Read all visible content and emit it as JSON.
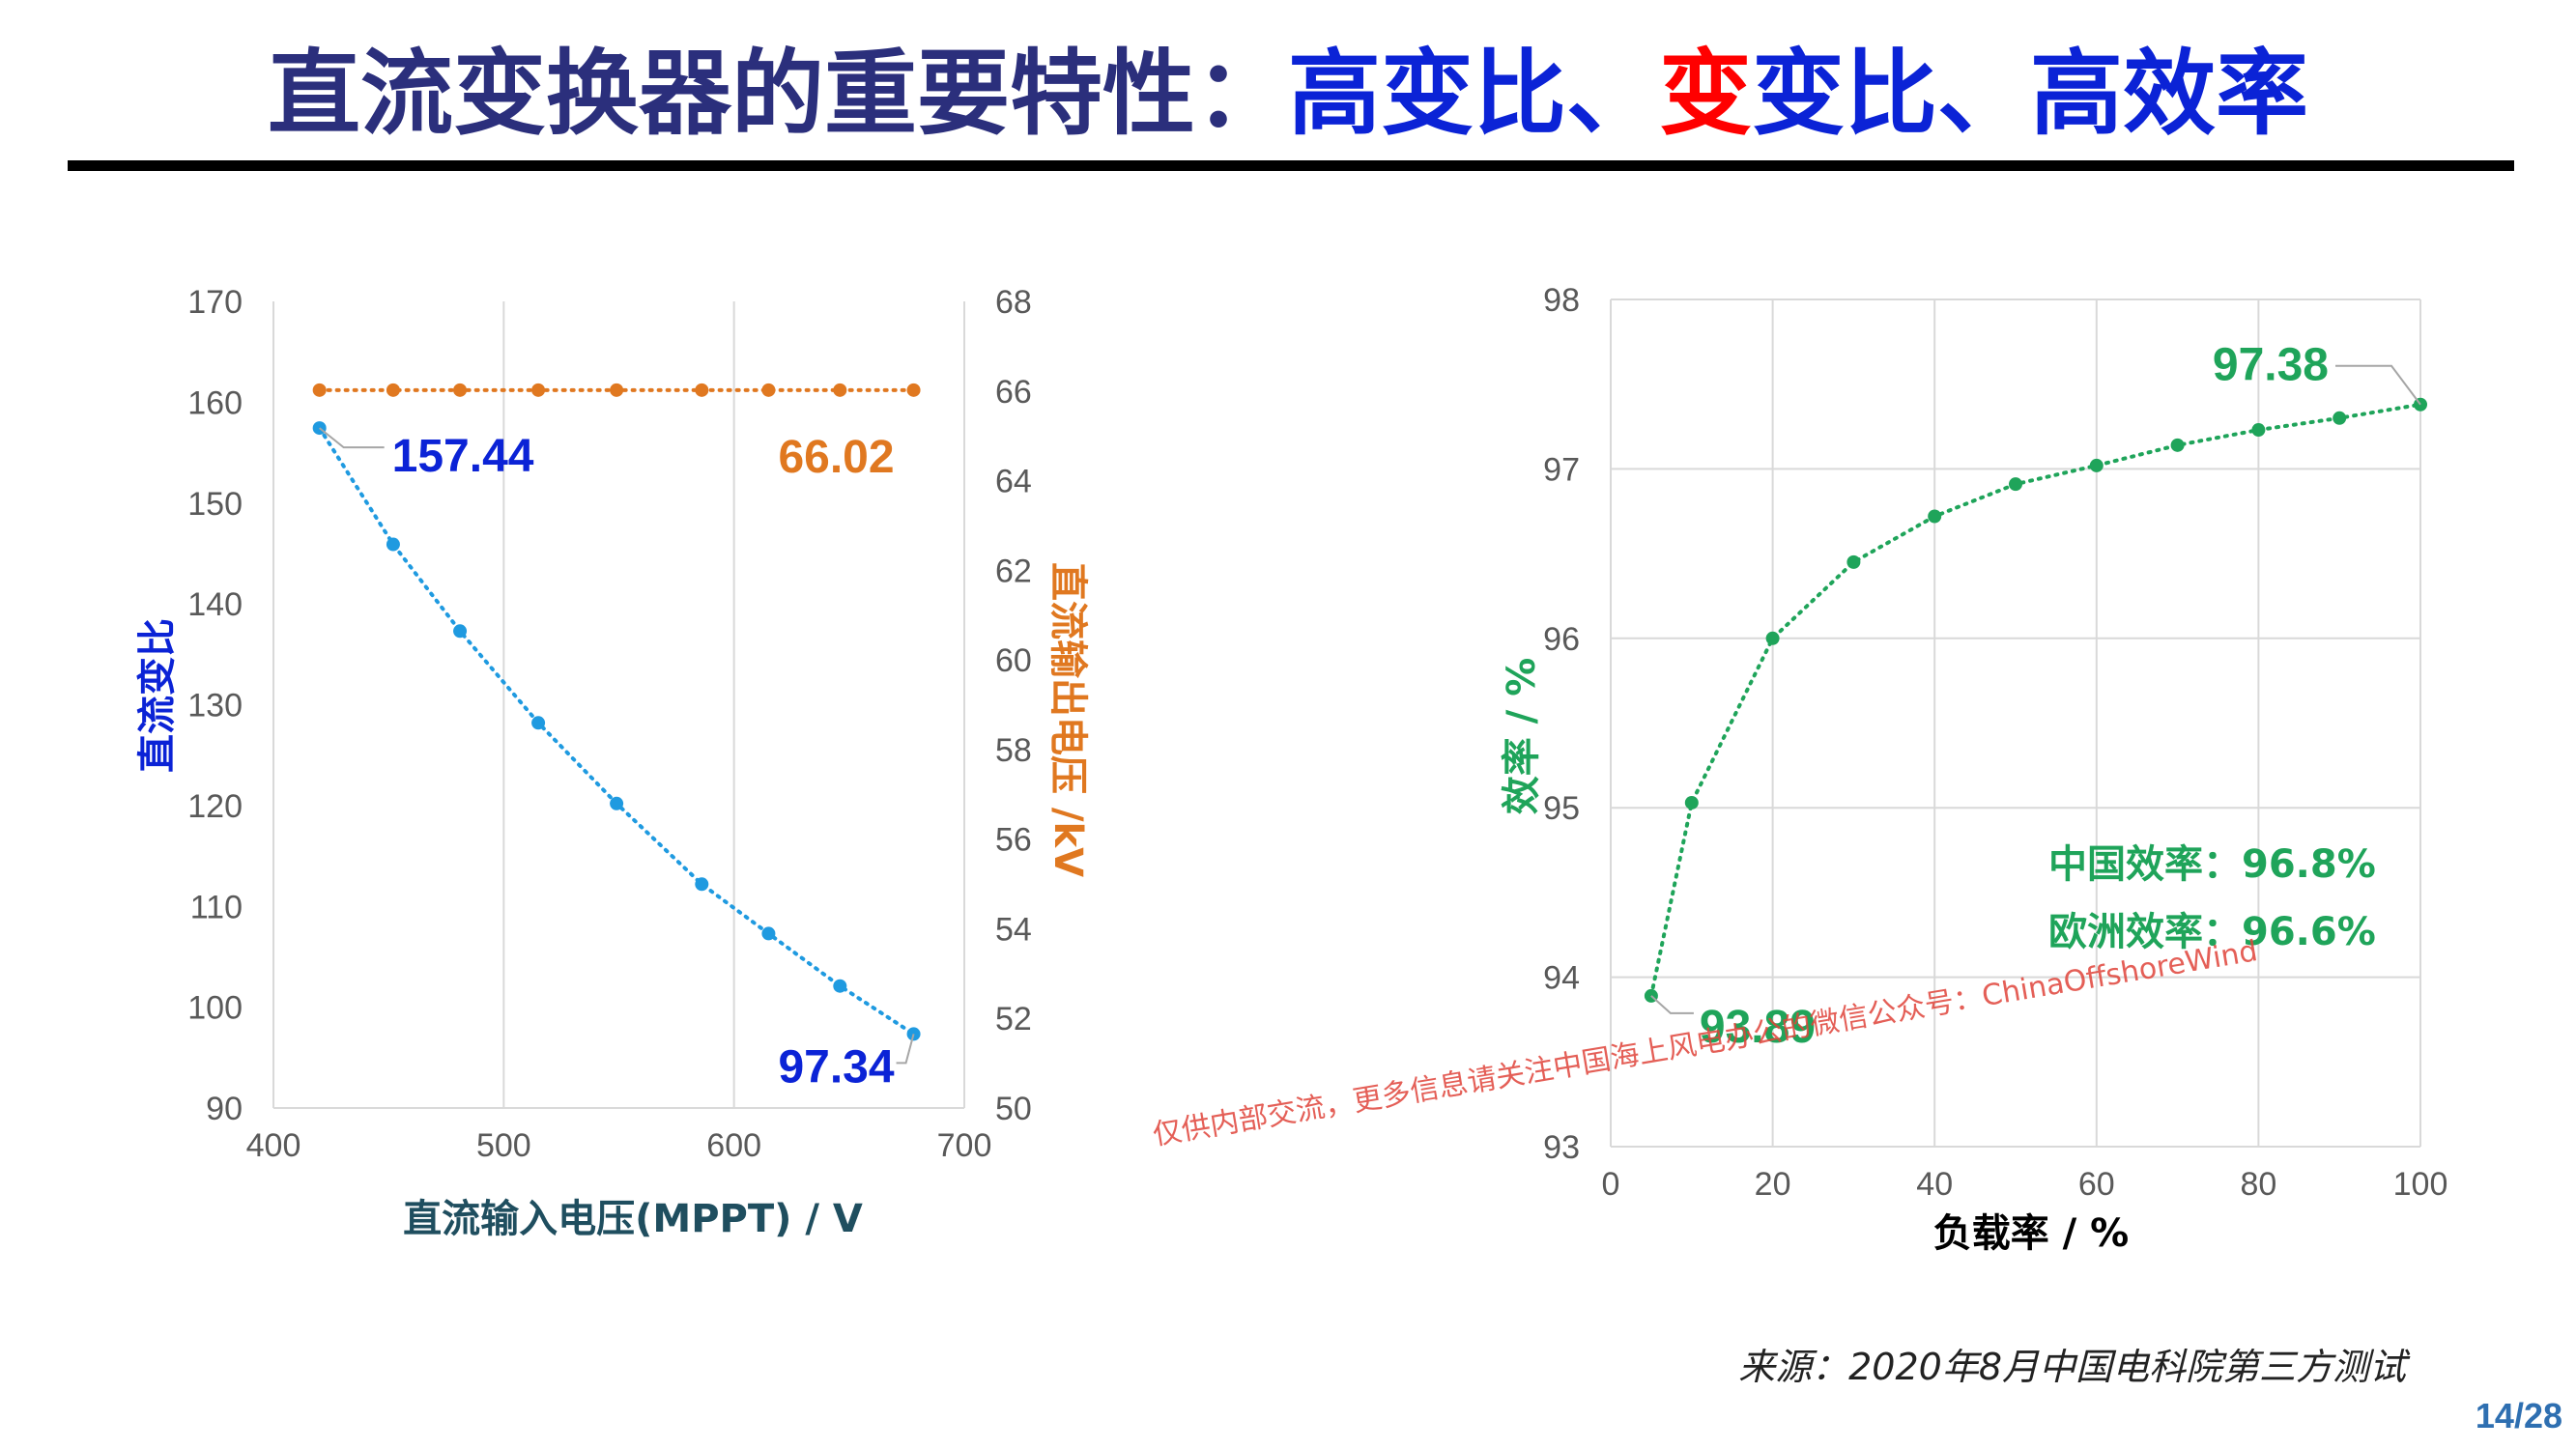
{
  "title": {
    "part1": "直流变换器的重要特性：",
    "part2": "高变比、",
    "part3": "变",
    "part4": "变比、高效率",
    "color_dark": "#2b2f7c",
    "color_blue": "#0b23d6",
    "color_red": "#ff0000"
  },
  "chart_data": [
    {
      "type": "line",
      "xlabel": "直流输入电压(MPPT) / V",
      "ylabel": "直流变比",
      "y2label": "直流输出电压 /kV",
      "xlim": [
        400,
        700
      ],
      "ylim": [
        90,
        170
      ],
      "y2lim": [
        50,
        68
      ],
      "x_ticks": [
        "400",
        "500",
        "600",
        "700"
      ],
      "y_ticks": [
        "90",
        "100",
        "110",
        "120",
        "130",
        "140",
        "150",
        "160",
        "170"
      ],
      "y2_ticks": [
        "50",
        "52",
        "54",
        "56",
        "58",
        "60",
        "62",
        "64",
        "66",
        "68"
      ],
      "grid": "vertical",
      "series": [
        {
          "axis": "left",
          "color": "#1f9ae0",
          "label_color": "#0b23d6",
          "x": [
            420,
            452,
            481,
            515,
            549,
            586,
            615,
            646,
            678
          ],
          "values": [
            157.44,
            145.9,
            137.3,
            128.2,
            120.2,
            112.2,
            107.3,
            102.1,
            97.34
          ],
          "labels": [
            {
              "index": 0,
              "text": "157.44"
            },
            {
              "index": 8,
              "text": "97.34"
            }
          ]
        },
        {
          "axis": "right",
          "color": "#e07820",
          "label_color": "#e07820",
          "x": [
            420,
            452,
            481,
            515,
            549,
            586,
            615,
            646,
            678
          ],
          "values": [
            66.02,
            66.02,
            66.02,
            66.02,
            66.02,
            66.02,
            66.02,
            66.02,
            66.02
          ],
          "labels": [
            {
              "index": 8,
              "text": "66.02"
            }
          ]
        }
      ]
    },
    {
      "type": "line",
      "xlabel": "负载率 / %",
      "ylabel": "效率 / %",
      "xlim": [
        0,
        100
      ],
      "ylim": [
        93,
        98
      ],
      "x_ticks": [
        "0",
        "20",
        "40",
        "60",
        "80",
        "100"
      ],
      "y_ticks": [
        "93",
        "94",
        "95",
        "96",
        "97",
        "98"
      ],
      "grid": "both",
      "series": [
        {
          "color": "#1fa45a",
          "label_color": "#1fa45a",
          "x": [
            5,
            10,
            20,
            30,
            40,
            50,
            60,
            70,
            80,
            90,
            100
          ],
          "values": [
            93.89,
            95.03,
            96.0,
            96.45,
            96.72,
            96.91,
            97.02,
            97.14,
            97.23,
            97.3,
            97.38
          ],
          "labels": [
            {
              "index": 0,
              "text": "93.89"
            },
            {
              "index": 10,
              "text": "97.38"
            }
          ]
        }
      ],
      "notes": [
        "中国效率：96.8%",
        "欧洲效率：96.6%"
      ]
    }
  ],
  "watermark": "仅供内部交流，更多信息请关注中国海上风电办公的微信公众号：ChinaOffshoreWind",
  "source": "来源：2020年8月中国电科院第三方测试",
  "page_number": "14/28"
}
